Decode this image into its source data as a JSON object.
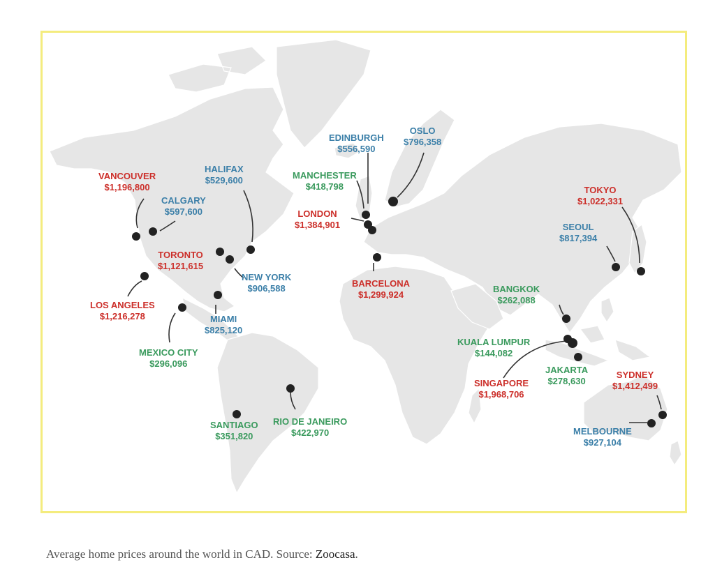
{
  "caption": {
    "text": "Average home prices around the world in CAD. Source: ",
    "source_link": "Zoocasa",
    "end": "."
  },
  "colors": {
    "red": "#cc2f2a",
    "blue": "#3b7fa8",
    "green": "#3a9a5d",
    "frame": "#f4ec7e",
    "land": "#e6e6e6",
    "dot": "#222222"
  },
  "cities": [
    {
      "name": "VANCOUVER",
      "price": "$1,196,800",
      "color": "red"
    },
    {
      "name": "CALGARY",
      "price": "$597,600",
      "color": "blue"
    },
    {
      "name": "HALIFAX",
      "price": "$529,600",
      "color": "blue"
    },
    {
      "name": "TORONTO",
      "price": "$1,121,615",
      "color": "red"
    },
    {
      "name": "NEW YORK",
      "price": "$906,588",
      "color": "blue"
    },
    {
      "name": "LOS ANGELES",
      "price": "$1,216,278",
      "color": "red"
    },
    {
      "name": "MIAMI",
      "price": "$825,120",
      "color": "blue"
    },
    {
      "name": "MEXICO CITY",
      "price": "$296,096",
      "color": "green"
    },
    {
      "name": "SANTIAGO",
      "price": "$351,820",
      "color": "green"
    },
    {
      "name": "RIO DE JANEIRO",
      "price": "$422,970",
      "color": "green"
    },
    {
      "name": "EDINBURGH",
      "price": "$556,590",
      "color": "blue"
    },
    {
      "name": "OSLO",
      "price": "$796,358",
      "color": "blue"
    },
    {
      "name": "MANCHESTER",
      "price": "$418,798",
      "color": "green"
    },
    {
      "name": "LONDON",
      "price": "$1,384,901",
      "color": "red"
    },
    {
      "name": "BARCELONA",
      "price": "$1,299,924",
      "color": "red"
    },
    {
      "name": "TOKYO",
      "price": "$1,022,331",
      "color": "red"
    },
    {
      "name": "SEOUL",
      "price": "$817,394",
      "color": "blue"
    },
    {
      "name": "BANGKOK",
      "price": "$262,088",
      "color": "green"
    },
    {
      "name": "KUALA LUMPUR",
      "price": "$144,082",
      "color": "green"
    },
    {
      "name": "JAKARTA",
      "price": "$278,630",
      "color": "green"
    },
    {
      "name": "SINGAPORE",
      "price": "$1,968,706",
      "color": "red"
    },
    {
      "name": "SYDNEY",
      "price": "$1,412,499",
      "color": "red"
    },
    {
      "name": "MELBOURNE",
      "price": "$927,104",
      "color": "blue"
    }
  ]
}
